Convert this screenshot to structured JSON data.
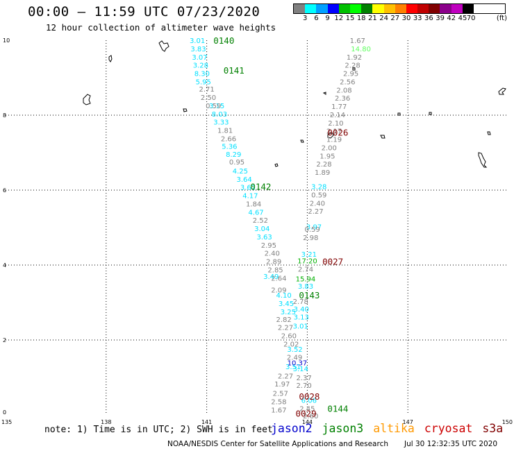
{
  "header": {
    "title": "00:00 – 11:59 UTC 07/23/2020",
    "subtitle": "12 hour collection of altimeter wave heights"
  },
  "legend": {
    "units": "(ft)",
    "bins": [
      {
        "label": "3",
        "color": "#808080"
      },
      {
        "label": "6",
        "color": "#00ffff"
      },
      {
        "label": "9",
        "color": "#00a0ff"
      },
      {
        "label": "12",
        "color": "#0000ff"
      },
      {
        "label": "15",
        "color": "#00c000"
      },
      {
        "label": "18",
        "color": "#00ff00"
      },
      {
        "label": "21",
        "color": "#008000"
      },
      {
        "label": "24",
        "color": "#ffff00"
      },
      {
        "label": "27",
        "color": "#ffc000"
      },
      {
        "label": "30",
        "color": "#ff8000"
      },
      {
        "label": "33",
        "color": "#ff0000"
      },
      {
        "label": "36",
        "color": "#c00000"
      },
      {
        "label": "39",
        "color": "#800000"
      },
      {
        "label": "42",
        "color": "#8b008b"
      },
      {
        "label": "45",
        "color": "#c000c0"
      },
      {
        "label": "70",
        "color": "#000000"
      }
    ]
  },
  "axes": {
    "x_ticks": [
      "135",
      "138",
      "141",
      "144",
      "147",
      "150"
    ],
    "y_ticks": [
      "0",
      "2",
      "4",
      "6",
      "8",
      "10"
    ]
  },
  "passes": [
    {
      "label": "0140",
      "color": "#008000",
      "x": 141.2,
      "y": 10.0
    },
    {
      "label": "0141",
      "color": "#008000",
      "x": 141.5,
      "y": 9.2
    },
    {
      "label": "0026",
      "color": "#800000",
      "x": 144.6,
      "y": 7.55
    },
    {
      "label": "0142",
      "color": "#008000",
      "x": 142.3,
      "y": 6.1
    },
    {
      "label": "0027",
      "color": "#800000",
      "x": 144.45,
      "y": 4.1
    },
    {
      "label": "0143",
      "color": "#008000",
      "x": 143.75,
      "y": 3.2
    },
    {
      "label": "0028",
      "color": "#800000",
      "x": 143.75,
      "y": 0.5
    },
    {
      "label": "0144",
      "color": "#008000",
      "x": 144.6,
      "y": 0.18
    },
    {
      "label": "0029",
      "color": "#800000",
      "x": 143.65,
      "y": 0.05
    }
  ],
  "measurements": {
    "cyan": [
      {
        "v": "3.01",
        "x": 140.72,
        "y": 10.0
      },
      {
        "v": "3.83",
        "x": 140.75,
        "y": 9.78
      },
      {
        "v": "3.07",
        "x": 140.79,
        "y": 9.56
      },
      {
        "v": "3.28",
        "x": 140.82,
        "y": 9.34
      },
      {
        "v": "8.30",
        "x": 140.86,
        "y": 9.12
      },
      {
        "v": "5.95",
        "x": 140.9,
        "y": 8.9
      },
      {
        "v": "3.15",
        "x": 141.3,
        "y": 8.26
      },
      {
        "v": "8.03",
        "x": 141.38,
        "y": 8.04
      },
      {
        "v": "3.33",
        "x": 141.43,
        "y": 7.82
      },
      {
        "v": "5.36",
        "x": 141.68,
        "y": 7.18
      },
      {
        "v": "8.29",
        "x": 141.8,
        "y": 6.96
      },
      {
        "v": "4.25",
        "x": 142.0,
        "y": 6.52
      },
      {
        "v": "3.64",
        "x": 142.12,
        "y": 6.3
      },
      {
        "v": "3.62",
        "x": 142.23,
        "y": 6.08
      },
      {
        "v": "4.17",
        "x": 142.3,
        "y": 5.86
      },
      {
        "v": "4.67",
        "x": 142.47,
        "y": 5.42
      },
      {
        "v": "3.04",
        "x": 142.65,
        "y": 4.98
      },
      {
        "v": "3.63",
        "x": 142.72,
        "y": 4.76
      },
      {
        "v": "3.49",
        "x": 142.92,
        "y": 3.7
      },
      {
        "v": "4.10",
        "x": 143.3,
        "y": 3.2
      },
      {
        "v": "3.45",
        "x": 143.37,
        "y": 2.98
      },
      {
        "v": "3.25",
        "x": 143.43,
        "y": 2.76
      },
      {
        "v": "3.40",
        "x": 143.82,
        "y": 2.83
      },
      {
        "v": "3.13",
        "x": 143.82,
        "y": 2.62
      },
      {
        "v": "3.01",
        "x": 143.8,
        "y": 2.38
      },
      {
        "v": "3.52",
        "x": 143.63,
        "y": 1.76
      },
      {
        "v": "3.14",
        "x": 143.8,
        "y": 1.24
      },
      {
        "v": "3.51",
        "x": 143.58,
        "y": 1.3
      },
      {
        "v": "6.06",
        "x": 144.05,
        "y": 0.4
      },
      {
        "v": "3.28",
        "x": 144.35,
        "y": 6.1
      },
      {
        "v": "3.97",
        "x": 144.2,
        "y": 5.03
      },
      {
        "v": "3.21",
        "x": 144.05,
        "y": 4.3
      },
      {
        "v": "3.83",
        "x": 143.95,
        "y": 3.44
      }
    ],
    "gray": [
      {
        "v": "1.67",
        "x": 145.5,
        "y": 10.0
      },
      {
        "v": "1.92",
        "x": 145.4,
        "y": 9.56
      },
      {
        "v": "2.28",
        "x": 145.35,
        "y": 9.34
      },
      {
        "v": "2.95",
        "x": 145.3,
        "y": 9.12
      },
      {
        "v": "2.56",
        "x": 145.2,
        "y": 8.9
      },
      {
        "v": "2.08",
        "x": 145.1,
        "y": 8.68
      },
      {
        "v": "2.36",
        "x": 145.05,
        "y": 8.46
      },
      {
        "v": "1.77",
        "x": 144.95,
        "y": 8.24
      },
      {
        "v": "2.14",
        "x": 144.9,
        "y": 8.02
      },
      {
        "v": "2.10",
        "x": 144.85,
        "y": 7.8
      },
      {
        "v": "2.17",
        "x": 144.8,
        "y": 7.58
      },
      {
        "v": "1.19",
        "x": 144.8,
        "y": 7.36
      },
      {
        "v": "2.00",
        "x": 144.65,
        "y": 7.14
      },
      {
        "v": "1.95",
        "x": 144.6,
        "y": 6.92
      },
      {
        "v": "2.28",
        "x": 144.5,
        "y": 6.7
      },
      {
        "v": "1.89",
        "x": 144.45,
        "y": 6.48
      },
      {
        "v": "0.59",
        "x": 144.35,
        "y": 5.88
      },
      {
        "v": "2.40",
        "x": 144.3,
        "y": 5.66
      },
      {
        "v": "2.27",
        "x": 144.25,
        "y": 5.44
      },
      {
        "v": "0.59",
        "x": 144.15,
        "y": 4.96
      },
      {
        "v": "2.98",
        "x": 144.1,
        "y": 4.74
      },
      {
        "v": "2.74",
        "x": 143.95,
        "y": 3.9
      },
      {
        "v": "2.71",
        "x": 141.0,
        "y": 8.7
      },
      {
        "v": "2.50",
        "x": 141.05,
        "y": 8.48
      },
      {
        "v": "0.59",
        "x": 141.2,
        "y": 8.26
      },
      {
        "v": "1.81",
        "x": 141.55,
        "y": 7.6
      },
      {
        "v": "2.66",
        "x": 141.65,
        "y": 7.38
      },
      {
        "v": "0.95",
        "x": 141.9,
        "y": 6.76
      },
      {
        "v": "1.84",
        "x": 142.4,
        "y": 5.64
      },
      {
        "v": "2.52",
        "x": 142.6,
        "y": 5.2
      },
      {
        "v": "2.95",
        "x": 142.85,
        "y": 4.54
      },
      {
        "v": "2.40",
        "x": 142.95,
        "y": 4.32
      },
      {
        "v": "2.89",
        "x": 143.0,
        "y": 4.1
      },
      {
        "v": "2.85",
        "x": 143.05,
        "y": 3.88
      },
      {
        "v": "2.64",
        "x": 143.15,
        "y": 3.66
      },
      {
        "v": "2.09",
        "x": 143.15,
        "y": 3.34
      },
      {
        "v": "2.78",
        "x": 143.8,
        "y": 3.04
      },
      {
        "v": "2.82",
        "x": 143.3,
        "y": 2.56
      },
      {
        "v": "2.27",
        "x": 143.35,
        "y": 2.34
      },
      {
        "v": "2.60",
        "x": 143.45,
        "y": 2.12
      },
      {
        "v": "2.02",
        "x": 143.52,
        "y": 1.9
      },
      {
        "v": "2.49",
        "x": 143.62,
        "y": 1.55
      },
      {
        "v": "2.27",
        "x": 143.35,
        "y": 1.05
      },
      {
        "v": "2.37",
        "x": 143.9,
        "y": 1.0
      },
      {
        "v": "1.97",
        "x": 143.25,
        "y": 0.83
      },
      {
        "v": "2.70",
        "x": 143.9,
        "y": 0.8
      },
      {
        "v": "2.57",
        "x": 143.2,
        "y": 0.58
      },
      {
        "v": "2.58",
        "x": 143.15,
        "y": 0.36
      },
      {
        "v": "1.67",
        "x": 143.15,
        "y": 0.14
      },
      {
        "v": "2.45",
        "x": 144.0,
        "y": 0.18
      },
      {
        "v": "2.60",
        "x": 144.1,
        "y": -0.02
      }
    ],
    "green": [
      {
        "v": "17.20",
        "x": 144.0,
        "y": 4.12
      },
      {
        "v": "15.94",
        "x": 143.95,
        "y": 3.64
      }
    ],
    "lightgreen": [
      {
        "v": "14.80",
        "x": 145.6,
        "y": 9.78
      }
    ],
    "blue": [
      {
        "v": "10.37",
        "x": 143.7,
        "y": 1.4
      }
    ]
  },
  "footer": {
    "note": "note: 1) Time is in UTC; 2) SWH is in feet",
    "missions": [
      {
        "name": "jason2",
        "color": "#0000cc"
      },
      {
        "name": "jason3",
        "color": "#008000"
      },
      {
        "name": "altika",
        "color": "#ff9900"
      },
      {
        "name": "cryosat",
        "color": "#cc0000"
      },
      {
        "name": "s3a",
        "color": "#800000"
      }
    ],
    "credit": "NOAA/NESDIS Center for Satellite Applications and Research",
    "timestamp": "Jul 30 12:32:35 UTC 2020"
  }
}
